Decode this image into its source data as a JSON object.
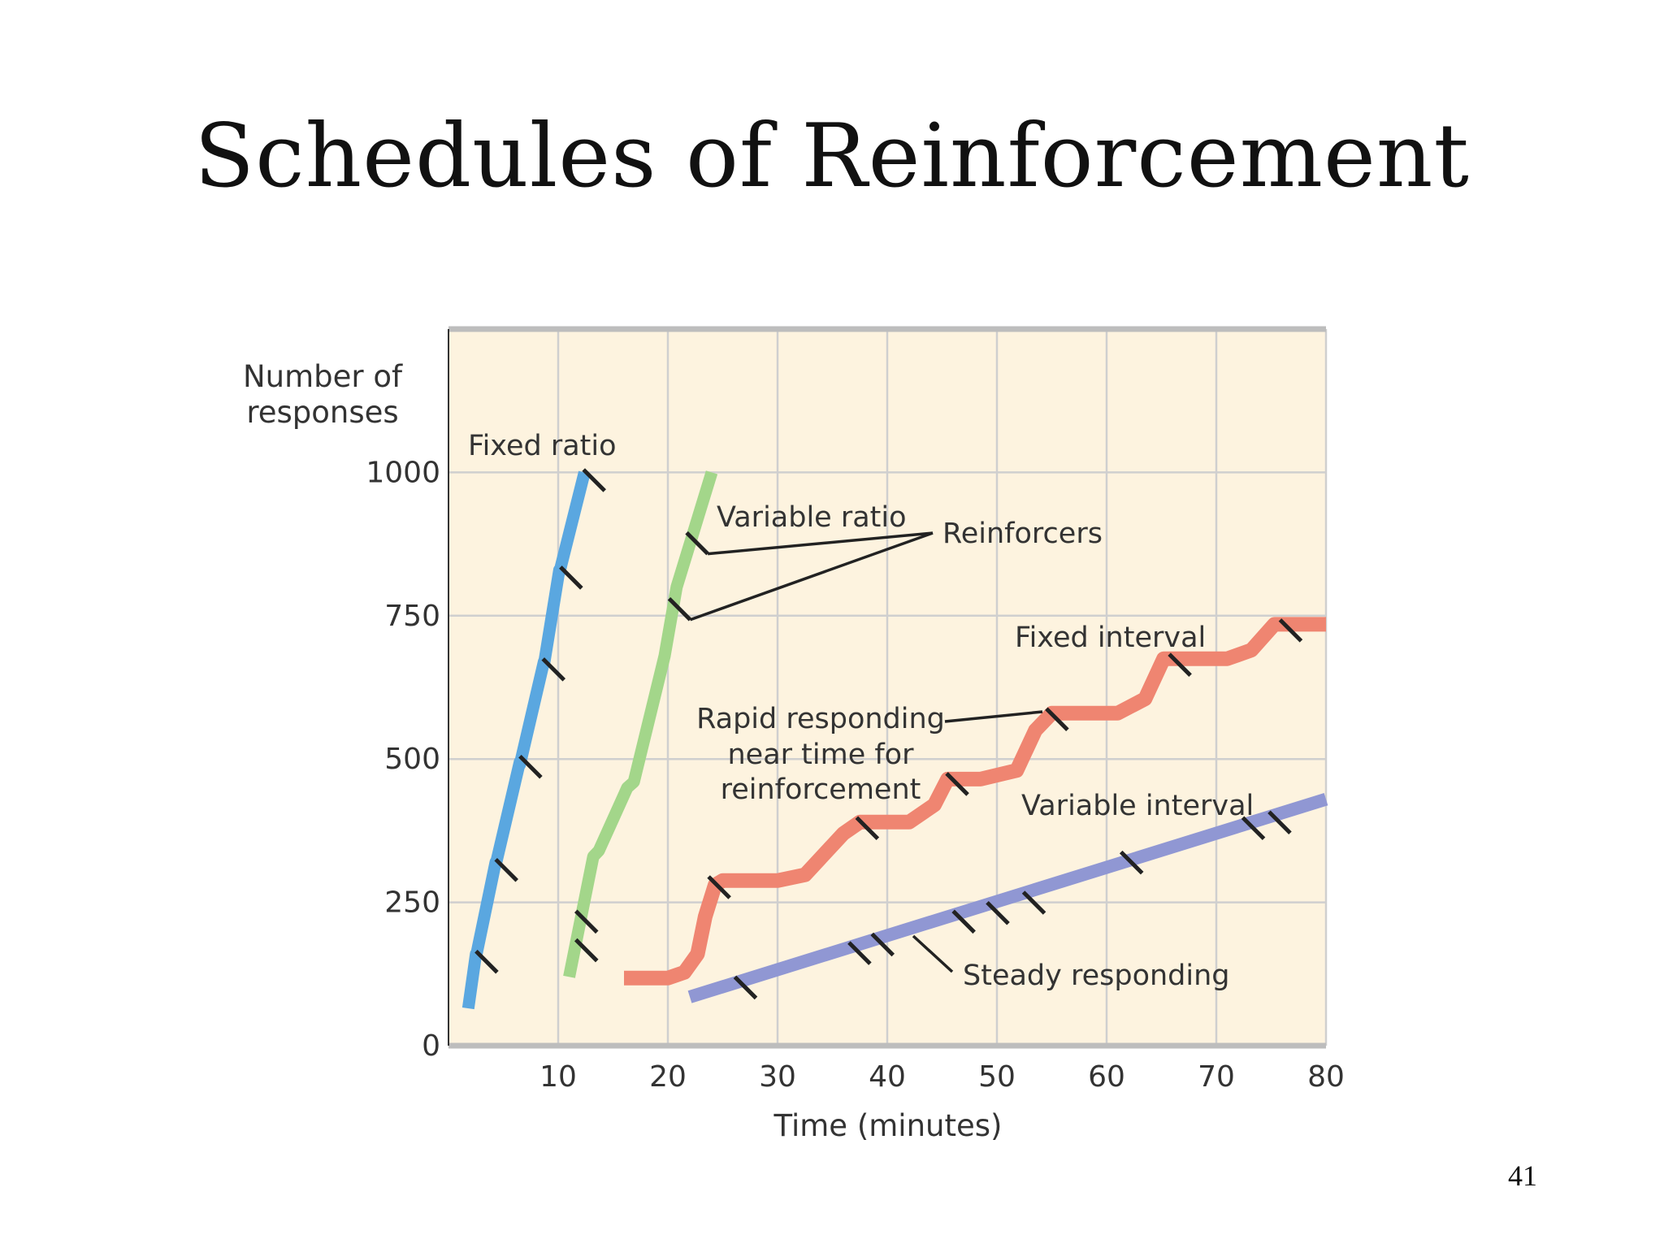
{
  "slide": {
    "title": "Schedules of Reinforcement",
    "page_number": "41"
  },
  "chart_data": {
    "type": "line",
    "xlabel": "Time (minutes)",
    "ylabel_line1": "Number of",
    "ylabel_line2": "responses",
    "xlim": [
      0,
      80
    ],
    "ylim": [
      0,
      1250
    ],
    "x_ticks": [
      10,
      20,
      30,
      40,
      50,
      60,
      70,
      80
    ],
    "y_ticks": [
      0,
      250,
      500,
      750,
      1000
    ],
    "grid": true,
    "colors": {
      "fixed_ratio": "#5aa7e0",
      "variable_ratio": "#a3d68a",
      "fixed_interval": "#ef8571",
      "variable_interval": "#9097d3",
      "background": "#fdf3df",
      "grid": "#cfcfcf",
      "axis": "#bdbdbd",
      "marker": "#222222"
    },
    "series": [
      {
        "key": "fixed_ratio",
        "x": [
          1.8,
          2.5,
          2.5,
          4.3,
          4.3,
          6.5,
          6.5,
          8.7,
          8.7,
          10.1,
          10.1,
          12.4
        ],
        "y": [
          65,
          160,
          155,
          320,
          315,
          495,
          490,
          670,
          665,
          830,
          825,
          1000
        ]
      },
      {
        "key": "variable_ratio",
        "x": [
          11.0,
          13.2,
          13.7,
          16.3,
          16.9,
          19.7,
          20.8,
          22.4,
          24.0
        ],
        "y": [
          120,
          330,
          340,
          450,
          460,
          680,
          800,
          900,
          1000
        ]
      },
      {
        "key": "fixed_interval",
        "x": [
          16,
          20,
          21.5,
          22.7,
          23.4,
          24.3,
          25,
          30,
          32.5,
          36,
          37.5,
          42,
          44.3,
          45.5,
          48.5,
          51.8,
          53.5,
          55,
          61,
          63.5,
          65.2,
          66.5,
          71,
          73.2,
          75.3,
          80
        ],
        "y": [
          118,
          118,
          128,
          160,
          225,
          280,
          288,
          288,
          298,
          370,
          390,
          390,
          420,
          465,
          465,
          480,
          550,
          580,
          580,
          605,
          675,
          675,
          675,
          690,
          735,
          735
        ]
      },
      {
        "key": "variable_interval",
        "x": [
          22,
          80
        ],
        "y": [
          85,
          430
        ]
      }
    ],
    "reinforcers": {
      "fixed_ratio": [
        [
          3.4,
          145
        ],
        [
          5.2,
          305
        ],
        [
          7.4,
          485
        ],
        [
          9.5,
          655
        ],
        [
          11.1,
          815
        ],
        [
          13.2,
          985
        ]
      ],
      "variable_ratio": [
        [
          12.5,
          165
        ],
        [
          12.5,
          215
        ],
        [
          21.0,
          760
        ],
        [
          22.6,
          875
        ]
      ],
      "fixed_interval": [
        [
          24.6,
          275
        ],
        [
          38.1,
          378
        ],
        [
          46.3,
          455
        ],
        [
          55.4,
          568
        ],
        [
          66.6,
          663
        ],
        [
          76.7,
          723
        ]
      ],
      "variable_interval": [
        [
          27.0,
          100
        ],
        [
          37.4,
          160
        ],
        [
          39.5,
          175
        ],
        [
          46.9,
          215
        ],
        [
          50.0,
          230
        ],
        [
          53.3,
          248
        ],
        [
          62.2,
          318
        ],
        [
          73.3,
          378
        ],
        [
          75.7,
          388
        ]
      ]
    },
    "annotations": {
      "fixed_ratio": "Fixed ratio",
      "variable_ratio": "Variable ratio",
      "reinforcers": "Reinforcers",
      "fixed_interval": "Fixed interval",
      "rapid_line1": "Rapid responding",
      "rapid_line2": "near time for",
      "rapid_line3": "reinforcement",
      "variable_interval": "Variable interval",
      "steady": "Steady responding"
    }
  }
}
